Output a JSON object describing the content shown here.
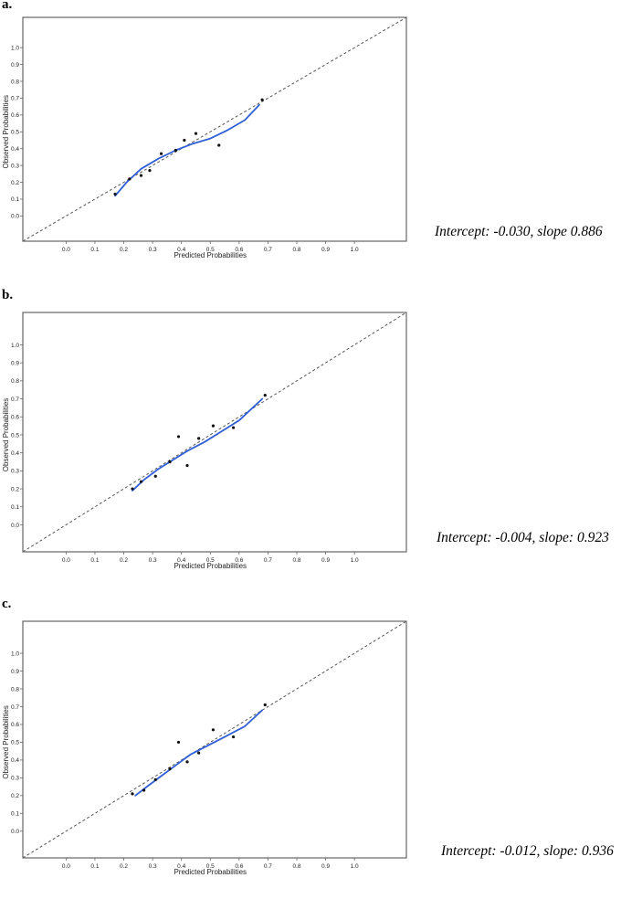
{
  "chart_data": [
    {
      "panel": "a.",
      "type": "scatter",
      "xlabel": "Predicted Probabilities",
      "ylabel": "Observed Probabilities",
      "xticks": [
        "0.0",
        "0.1",
        "0.2",
        "0.3",
        "0.4",
        "0.5",
        "0.6",
        "0.7",
        "0.8",
        "0.9",
        "1.0"
      ],
      "yticks": [
        "0.0",
        "0.1",
        "0.2",
        "0.3",
        "0.4",
        "0.5",
        "0.6",
        "0.7",
        "0.8",
        "0.9",
        "1.0"
      ],
      "xlim": [
        -0.15,
        1.18
      ],
      "ylim": [
        -0.15,
        1.18
      ],
      "points": [
        {
          "x": 0.17,
          "y": 0.13
        },
        {
          "x": 0.22,
          "y": 0.22
        },
        {
          "x": 0.26,
          "y": 0.24
        },
        {
          "x": 0.29,
          "y": 0.27
        },
        {
          "x": 0.33,
          "y": 0.37
        },
        {
          "x": 0.38,
          "y": 0.39
        },
        {
          "x": 0.41,
          "y": 0.45
        },
        {
          "x": 0.45,
          "y": 0.49
        },
        {
          "x": 0.53,
          "y": 0.42
        },
        {
          "x": 0.68,
          "y": 0.69
        }
      ],
      "smooth": [
        {
          "x": 0.17,
          "y": 0.12
        },
        {
          "x": 0.21,
          "y": 0.2
        },
        {
          "x": 0.26,
          "y": 0.28
        },
        {
          "x": 0.32,
          "y": 0.34
        },
        {
          "x": 0.38,
          "y": 0.39
        },
        {
          "x": 0.44,
          "y": 0.43
        },
        {
          "x": 0.5,
          "y": 0.46
        },
        {
          "x": 0.56,
          "y": 0.51
        },
        {
          "x": 0.62,
          "y": 0.57
        },
        {
          "x": 0.67,
          "y": 0.66
        }
      ],
      "annotation": "Intercept: -0.030, slope 0.886"
    },
    {
      "panel": "b.",
      "type": "scatter",
      "xlabel": "Predicted Probabilities",
      "ylabel": "Observed Probabilities",
      "xticks": [
        "0.0",
        "0.1",
        "0.2",
        "0.3",
        "0.4",
        "0.5",
        "0.6",
        "0.7",
        "0.8",
        "0.9",
        "1.0"
      ],
      "yticks": [
        "0.0",
        "0.1",
        "0.2",
        "0.3",
        "0.4",
        "0.5",
        "0.6",
        "0.7",
        "0.8",
        "0.9",
        "1.0"
      ],
      "xlim": [
        -0.15,
        1.18
      ],
      "ylim": [
        -0.15,
        1.18
      ],
      "points": [
        {
          "x": 0.23,
          "y": 0.2
        },
        {
          "x": 0.26,
          "y": 0.24
        },
        {
          "x": 0.31,
          "y": 0.27
        },
        {
          "x": 0.36,
          "y": 0.35
        },
        {
          "x": 0.39,
          "y": 0.49
        },
        {
          "x": 0.42,
          "y": 0.33
        },
        {
          "x": 0.46,
          "y": 0.48
        },
        {
          "x": 0.51,
          "y": 0.55
        },
        {
          "x": 0.58,
          "y": 0.54
        },
        {
          "x": 0.69,
          "y": 0.72
        }
      ],
      "smooth": [
        {
          "x": 0.23,
          "y": 0.19
        },
        {
          "x": 0.27,
          "y": 0.25
        },
        {
          "x": 0.32,
          "y": 0.31
        },
        {
          "x": 0.37,
          "y": 0.36
        },
        {
          "x": 0.42,
          "y": 0.41
        },
        {
          "x": 0.48,
          "y": 0.46
        },
        {
          "x": 0.54,
          "y": 0.52
        },
        {
          "x": 0.6,
          "y": 0.58
        },
        {
          "x": 0.68,
          "y": 0.7
        }
      ],
      "annotation": "Intercept: -0.004, slope: 0.923"
    },
    {
      "panel": "c.",
      "type": "scatter",
      "xlabel": "Predicted Probabilities",
      "ylabel": "Observed Probabilities",
      "xticks": [
        "0.0",
        "0.1",
        "0.2",
        "0.3",
        "0.4",
        "0.5",
        "0.6",
        "0.7",
        "0.8",
        "0.9",
        "1.0"
      ],
      "yticks": [
        "0.0",
        "0.1",
        "0.2",
        "0.3",
        "0.4",
        "0.5",
        "0.6",
        "0.7",
        "0.8",
        "0.9",
        "1.0"
      ],
      "xlim": [
        -0.15,
        1.18
      ],
      "ylim": [
        -0.15,
        1.18
      ],
      "points": [
        {
          "x": 0.23,
          "y": 0.21
        },
        {
          "x": 0.27,
          "y": 0.23
        },
        {
          "x": 0.31,
          "y": 0.29
        },
        {
          "x": 0.36,
          "y": 0.35
        },
        {
          "x": 0.39,
          "y": 0.5
        },
        {
          "x": 0.42,
          "y": 0.39
        },
        {
          "x": 0.46,
          "y": 0.44
        },
        {
          "x": 0.51,
          "y": 0.57
        },
        {
          "x": 0.58,
          "y": 0.53
        },
        {
          "x": 0.69,
          "y": 0.71
        }
      ],
      "smooth": [
        {
          "x": 0.24,
          "y": 0.2
        },
        {
          "x": 0.28,
          "y": 0.25
        },
        {
          "x": 0.33,
          "y": 0.31
        },
        {
          "x": 0.38,
          "y": 0.37
        },
        {
          "x": 0.43,
          "y": 0.43
        },
        {
          "x": 0.49,
          "y": 0.48
        },
        {
          "x": 0.55,
          "y": 0.53
        },
        {
          "x": 0.62,
          "y": 0.59
        },
        {
          "x": 0.68,
          "y": 0.68
        }
      ],
      "annotation": "Intercept: -0.012, slope: 0.936"
    }
  ],
  "style": {
    "smooth_color": "#2f5fd6",
    "ref_line_color": "#555555",
    "point_color": "#111111"
  }
}
